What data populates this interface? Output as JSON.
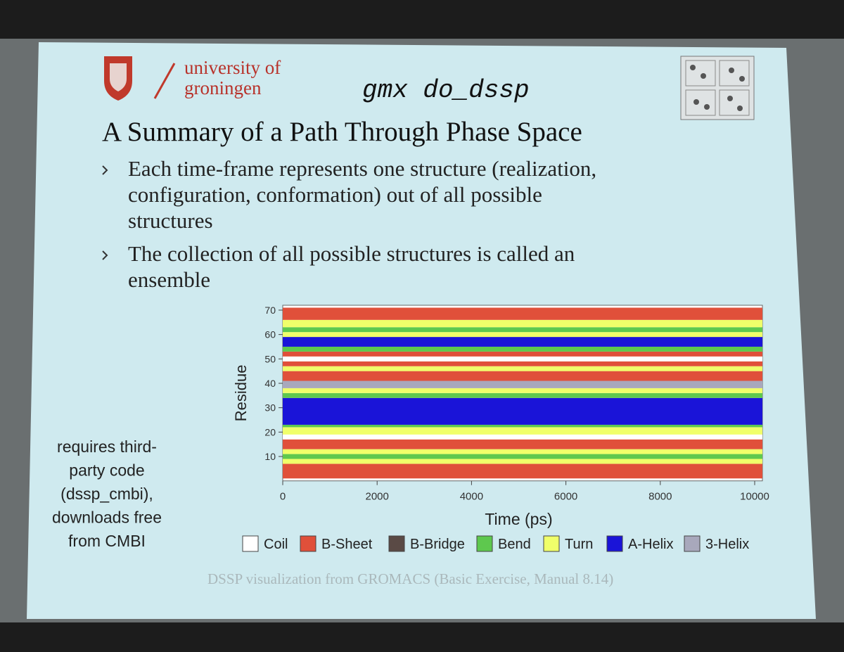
{
  "header": {
    "logo_line1": "university of",
    "logo_line2": "groningen",
    "command": "gmx do_dssp"
  },
  "title": "A Summary of a Path Through Phase Space",
  "bullets": [
    [
      "Each time-frame represents one structure (realization,",
      "configuration, conformation) out of all possible",
      "structures"
    ],
    [
      "The collection of all possible structures is called an",
      "ensemble"
    ]
  ],
  "side_note": [
    "requires third-",
    "party code",
    "(dssp_cmbi),",
    "downloads free",
    "from CMBI"
  ],
  "caption": "DSSP visualization from GROMACS (Basic Exercise, Manual 8.14)",
  "chart_data": {
    "type": "dssp",
    "x_label": "Time (ps)",
    "y_label": "Residue",
    "xlim": [
      0,
      10000
    ],
    "xticks": [
      0,
      2000,
      4000,
      6000,
      8000,
      10000
    ],
    "ylim": [
      0,
      72
    ],
    "yticks": [
      10,
      20,
      30,
      40,
      50,
      60,
      70
    ],
    "legend": [
      {
        "name": "Coil",
        "color": "#ffffff"
      },
      {
        "name": "B-Sheet",
        "color": "#e0503a"
      },
      {
        "name": "B-Bridge",
        "color": "#5a4a45"
      },
      {
        "name": "Bend",
        "color": "#5ec84e"
      },
      {
        "name": "Turn",
        "color": "#f0ff6a"
      },
      {
        "name": "A-Helix",
        "color": "#1a14d8"
      },
      {
        "name": "3-Helix",
        "color": "#a8a8bc"
      }
    ],
    "bands": [
      {
        "from": 1,
        "to": 7,
        "state": "B-Sheet"
      },
      {
        "from": 7,
        "to": 9,
        "state": "Turn"
      },
      {
        "from": 9,
        "to": 11,
        "state": "Bend"
      },
      {
        "from": 11,
        "to": 13,
        "state": "Turn"
      },
      {
        "from": 13,
        "to": 17,
        "state": "B-Sheet"
      },
      {
        "from": 17,
        "to": 19,
        "state": "Coil"
      },
      {
        "from": 19,
        "to": 22,
        "state": "Turn"
      },
      {
        "from": 22,
        "to": 23,
        "state": "Bend"
      },
      {
        "from": 23,
        "to": 34,
        "state": "A-Helix"
      },
      {
        "from": 34,
        "to": 36,
        "state": "Bend"
      },
      {
        "from": 36,
        "to": 38,
        "state": "Turn"
      },
      {
        "from": 38,
        "to": 41,
        "state": "3-Helix"
      },
      {
        "from": 41,
        "to": 45,
        "state": "B-Sheet"
      },
      {
        "from": 45,
        "to": 47,
        "state": "Turn"
      },
      {
        "from": 47,
        "to": 49,
        "state": "B-Sheet"
      },
      {
        "from": 49,
        "to": 51,
        "state": "Coil"
      },
      {
        "from": 51,
        "to": 53,
        "state": "B-Sheet"
      },
      {
        "from": 53,
        "to": 55,
        "state": "Bend"
      },
      {
        "from": 55,
        "to": 59,
        "state": "A-Helix"
      },
      {
        "from": 59,
        "to": 61,
        "state": "Turn"
      },
      {
        "from": 61,
        "to": 63,
        "state": "Bend"
      },
      {
        "from": 63,
        "to": 66,
        "state": "Turn"
      },
      {
        "from": 66,
        "to": 71,
        "state": "B-Sheet"
      }
    ]
  }
}
